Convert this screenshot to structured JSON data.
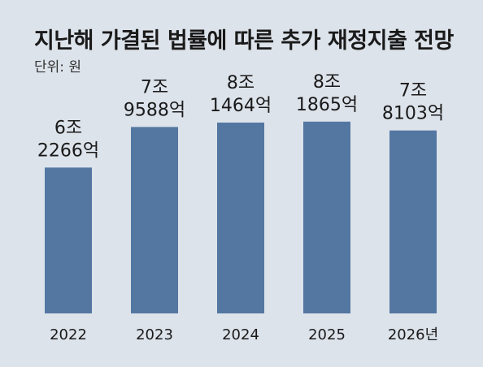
{
  "chart_data": {
    "type": "bar",
    "title": "지난해 가결된 법률에 따른 추가 재정지출 전망",
    "subtitle": "단위: 원",
    "categories": [
      "2022",
      "2023",
      "2024",
      "2025",
      "2026년"
    ],
    "values": [
      62266,
      79588,
      81464,
      81865,
      78103
    ],
    "value_unit": "억원",
    "data_labels": [
      [
        "6조",
        "2266억"
      ],
      [
        "7조",
        "9588억"
      ],
      [
        "8조",
        "1464억"
      ],
      [
        "8조",
        "1865억"
      ],
      [
        "7조",
        "8103억"
      ]
    ],
    "ylim": [
      0,
      87000
    ],
    "bar_color": "#5477a2",
    "grid": false,
    "legend": "none"
  }
}
